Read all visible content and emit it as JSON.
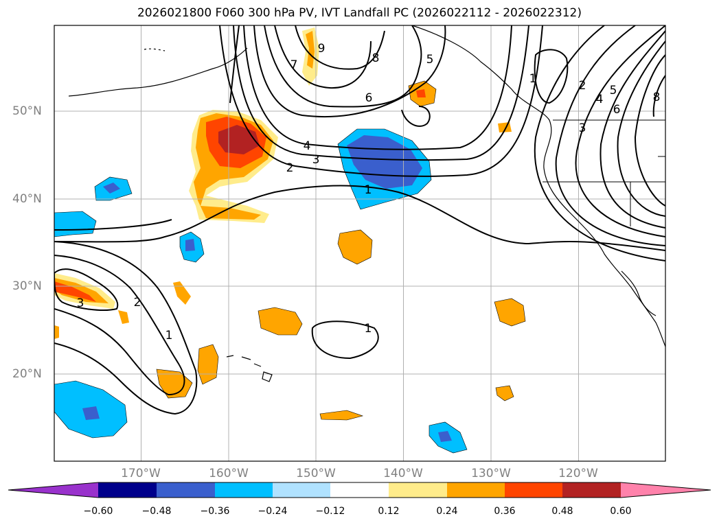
{
  "title": "2026021800 F060 300 hPa PV, IVT Landfall PC (2026022112 - 2026022312)",
  "lat_labels": [
    "50°N",
    "40°N",
    "30°N",
    "20°N"
  ],
  "lon_labels": [
    "170°W",
    "160°W",
    "150°W",
    "140°W",
    "130°W",
    "120°W"
  ],
  "contour_labels": [
    "1",
    "2",
    "3",
    "4",
    "5",
    "6",
    "7",
    "8",
    "9",
    "1",
    "2",
    "3",
    "4",
    "5",
    "6",
    "8",
    "1",
    "2",
    "3",
    "1"
  ],
  "colorbar": {
    "ticks": [
      "−0.60",
      "−0.48",
      "−0.36",
      "−0.24",
      "−0.12",
      "0.12",
      "0.24",
      "0.36",
      "0.48",
      "0.60"
    ],
    "colors": [
      "#9932cc",
      "#00008b",
      "#3a5fcd",
      "#00bfff",
      "#b0e2ff",
      "#ffffff",
      "#ffec8b",
      "#ffa500",
      "#ff4500",
      "#b22222",
      "#ff82ab"
    ]
  }
}
